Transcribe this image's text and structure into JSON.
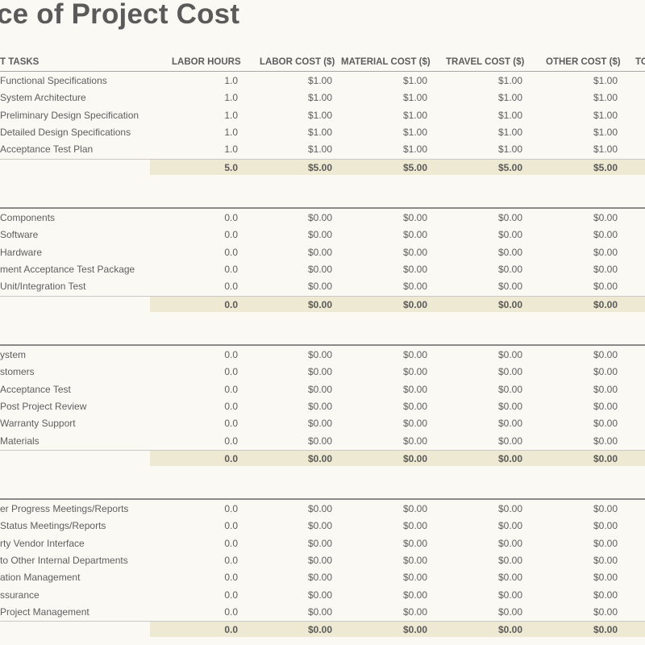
{
  "title": "ce of Project Cost",
  "columns": {
    "tasks": "T TASKS",
    "hours": "LABOR HOURS",
    "labor": "LABOR COST ($)",
    "material": "MATERIAL COST ($)",
    "travel": "TRAVEL COST ($)",
    "other": "OTHER COST ($)",
    "total": "TO"
  },
  "sections": [
    {
      "rows": [
        {
          "task": "Functional Specifications",
          "hours": "1.0",
          "labor": "$1.00",
          "material": "$1.00",
          "travel": "$1.00",
          "other": "$1.00"
        },
        {
          "task": "System Architecture",
          "hours": "1.0",
          "labor": "$1.00",
          "material": "$1.00",
          "travel": "$1.00",
          "other": "$1.00"
        },
        {
          "task": "Preliminary Design Specification",
          "hours": "1.0",
          "labor": "$1.00",
          "material": "$1.00",
          "travel": "$1.00",
          "other": "$1.00"
        },
        {
          "task": "Detailed Design Specifications",
          "hours": "1.0",
          "labor": "$1.00",
          "material": "$1.00",
          "travel": "$1.00",
          "other": "$1.00"
        },
        {
          "task": "Acceptance Test Plan",
          "hours": "1.0",
          "labor": "$1.00",
          "material": "$1.00",
          "travel": "$1.00",
          "other": "$1.00"
        }
      ],
      "total": {
        "hours": "5.0",
        "labor": "$5.00",
        "material": "$5.00",
        "travel": "$5.00",
        "other": "$5.00"
      }
    },
    {
      "rows": [
        {
          "task": "Components",
          "hours": "0.0",
          "labor": "$0.00",
          "material": "$0.00",
          "travel": "$0.00",
          "other": "$0.00"
        },
        {
          "task": "Software",
          "hours": "0.0",
          "labor": "$0.00",
          "material": "$0.00",
          "travel": "$0.00",
          "other": "$0.00"
        },
        {
          "task": "Hardware",
          "hours": "0.0",
          "labor": "$0.00",
          "material": "$0.00",
          "travel": "$0.00",
          "other": "$0.00"
        },
        {
          "task": "ment Acceptance Test Package",
          "hours": "0.0",
          "labor": "$0.00",
          "material": "$0.00",
          "travel": "$0.00",
          "other": "$0.00"
        },
        {
          "task": "Unit/Integration Test",
          "hours": "0.0",
          "labor": "$0.00",
          "material": "$0.00",
          "travel": "$0.00",
          "other": "$0.00"
        }
      ],
      "total": {
        "hours": "0.0",
        "labor": "$0.00",
        "material": "$0.00",
        "travel": "$0.00",
        "other": "$0.00"
      }
    },
    {
      "rows": [
        {
          "task": "ystem",
          "hours": "0.0",
          "labor": "$0.00",
          "material": "$0.00",
          "travel": "$0.00",
          "other": "$0.00"
        },
        {
          "task": "stomers",
          "hours": "0.0",
          "labor": "$0.00",
          "material": "$0.00",
          "travel": "$0.00",
          "other": "$0.00"
        },
        {
          "task": "Acceptance Test",
          "hours": "0.0",
          "labor": "$0.00",
          "material": "$0.00",
          "travel": "$0.00",
          "other": "$0.00"
        },
        {
          "task": "Post Project Review",
          "hours": "0.0",
          "labor": "$0.00",
          "material": "$0.00",
          "travel": "$0.00",
          "other": "$0.00"
        },
        {
          "task": "Warranty Support",
          "hours": "0.0",
          "labor": "$0.00",
          "material": "$0.00",
          "travel": "$0.00",
          "other": "$0.00"
        },
        {
          "task": "Materials",
          "hours": "0.0",
          "labor": "$0.00",
          "material": "$0.00",
          "travel": "$0.00",
          "other": "$0.00"
        }
      ],
      "total": {
        "hours": "0.0",
        "labor": "$0.00",
        "material": "$0.00",
        "travel": "$0.00",
        "other": "$0.00"
      }
    },
    {
      "rows": [
        {
          "task": "er Progress Meetings/Reports",
          "hours": "0.0",
          "labor": "$0.00",
          "material": "$0.00",
          "travel": "$0.00",
          "other": "$0.00"
        },
        {
          "task": "Status Meetings/Reports",
          "hours": "0.0",
          "labor": "$0.00",
          "material": "$0.00",
          "travel": "$0.00",
          "other": "$0.00"
        },
        {
          "task": "rty Vendor Interface",
          "hours": "0.0",
          "labor": "$0.00",
          "material": "$0.00",
          "travel": "$0.00",
          "other": "$0.00"
        },
        {
          "task": "to Other Internal Departments",
          "hours": "0.0",
          "labor": "$0.00",
          "material": "$0.00",
          "travel": "$0.00",
          "other": "$0.00"
        },
        {
          "task": "ation Management",
          "hours": "0.0",
          "labor": "$0.00",
          "material": "$0.00",
          "travel": "$0.00",
          "other": "$0.00"
        },
        {
          "task": "ssurance",
          "hours": "0.0",
          "labor": "$0.00",
          "material": "$0.00",
          "travel": "$0.00",
          "other": "$0.00"
        },
        {
          "task": "Project Management",
          "hours": "0.0",
          "labor": "$0.00",
          "material": "$0.00",
          "travel": "$0.00",
          "other": "$0.00"
        }
      ],
      "total": {
        "hours": "0.0",
        "labor": "$0.00",
        "material": "$0.00",
        "travel": "$0.00",
        "other": "$0.00"
      }
    }
  ]
}
